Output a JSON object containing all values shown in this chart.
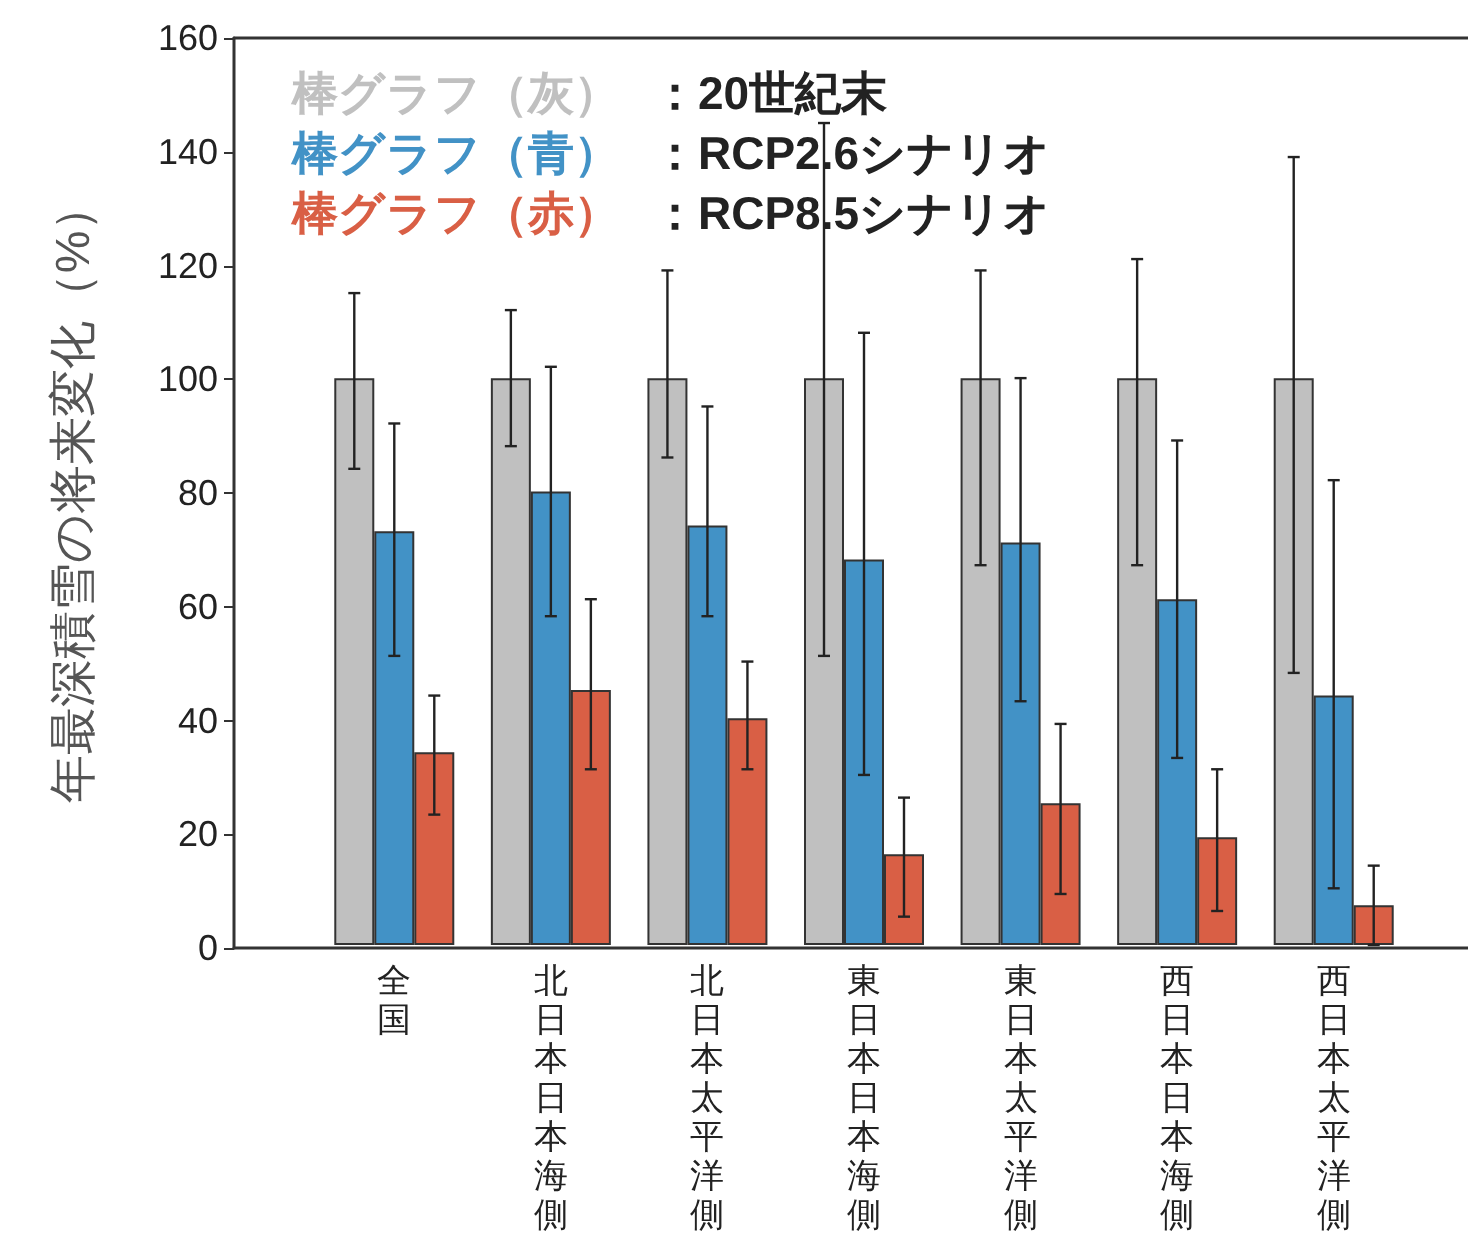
{
  "chart_data": {
    "type": "bar",
    "ylabel": "年最深積雪の将来変化（%）",
    "categories": [
      "全国",
      "北日本日本海側",
      "北日本太平洋側",
      "東日本日本海側",
      "東日本太平洋側",
      "西日本日本海側",
      "西日本太平洋側"
    ],
    "ylim": [
      0,
      160
    ],
    "yticks": [
      0,
      20,
      40,
      60,
      80,
      100,
      120,
      140,
      160
    ],
    "grid": false,
    "legend": "top left",
    "annotations": [
      "：20世紀末",
      "：RCP2.6シナリオ",
      "：RCP8.5シナリオ"
    ],
    "series": [
      {
        "name": "棒グラフ（灰）",
        "color": "#c0c0c0",
        "values": [
          100,
          100,
          100,
          100,
          100,
          100,
          100
        ],
        "errors": [
          [
            84,
            115
          ],
          [
            88,
            112
          ],
          [
            86,
            119
          ],
          [
            51,
            145
          ],
          [
            67,
            119
          ],
          [
            67,
            121
          ],
          [
            48,
            139
          ]
        ]
      },
      {
        "name": "棒グラフ（青）",
        "color": "#4292c6",
        "values": [
          73,
          80,
          74,
          68,
          71,
          61,
          44
        ],
        "errors": [
          [
            51,
            92
          ],
          [
            58,
            102
          ],
          [
            58,
            95
          ],
          [
            30,
            108
          ],
          [
            43,
            100
          ],
          [
            33,
            89
          ],
          [
            10,
            82
          ]
        ]
      },
      {
        "name": "棒グラフ（赤）",
        "color": "#d95f45",
        "values": [
          34,
          45,
          40,
          16,
          25,
          19,
          7
        ],
        "errors": [
          [
            23,
            44
          ],
          [
            31,
            61
          ],
          [
            31,
            50
          ],
          [
            5,
            26
          ],
          [
            9,
            39
          ],
          [
            6,
            31
          ],
          [
            0,
            14
          ]
        ]
      }
    ]
  }
}
